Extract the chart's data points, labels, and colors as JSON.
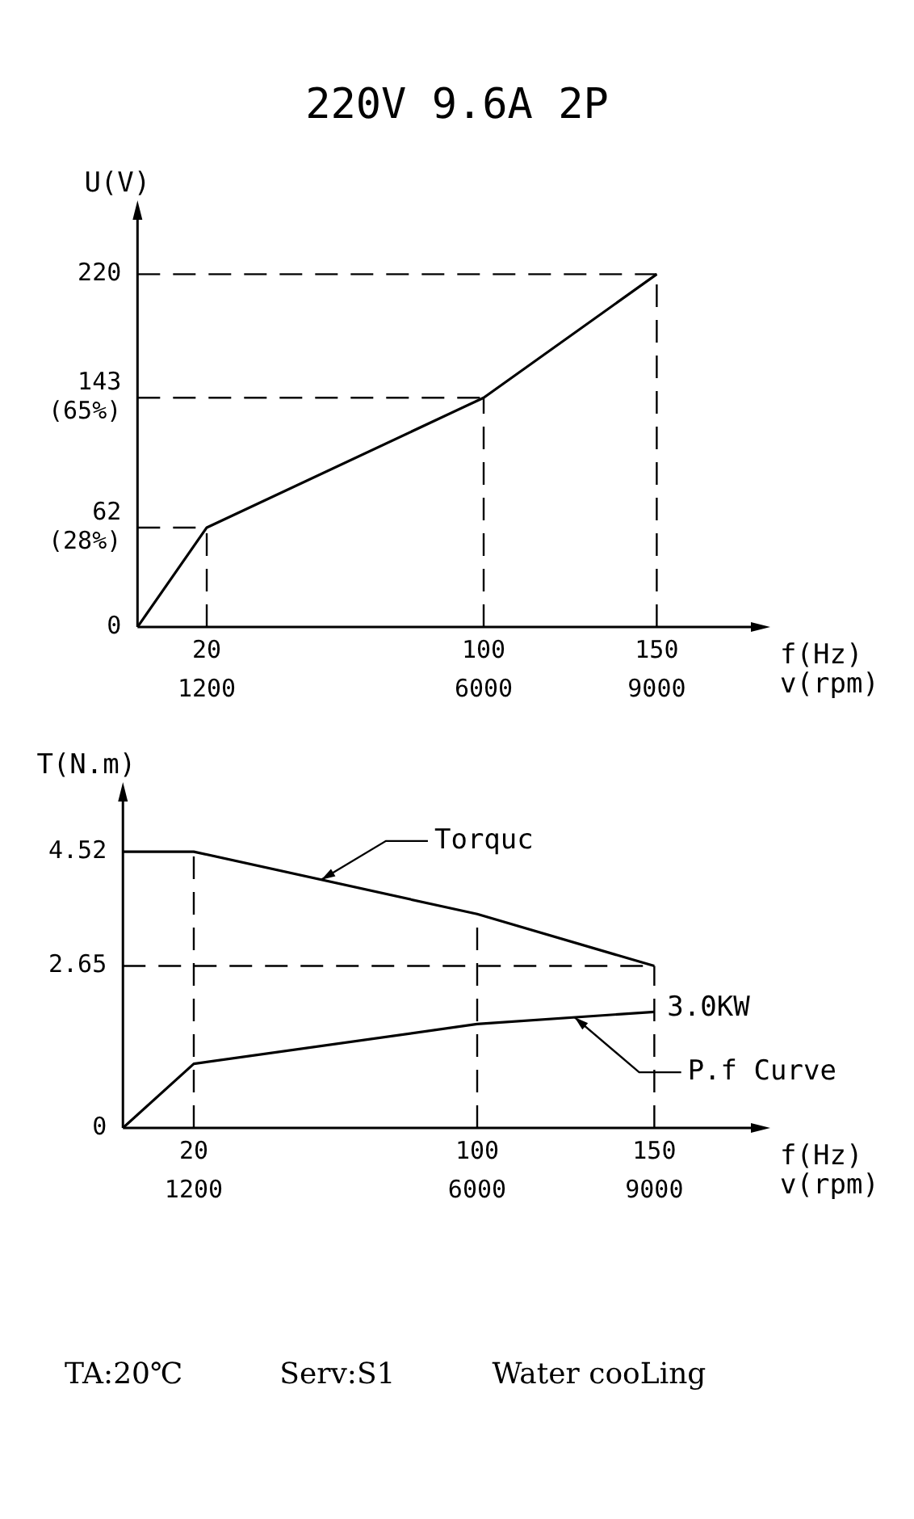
{
  "chart_data": [
    {
      "type": "line",
      "title": "220V 9.6A 2P",
      "xlabel": "f(Hz)",
      "x2label": "v(rpm)",
      "ylabel": "U(V)",
      "x2lim": [
        0,
        10800
      ],
      "x2ticks": [
        1200,
        6000,
        9000
      ],
      "series": [
        {
          "color": "#000000",
          "x": [
            0,
            20,
            100,
            150
          ],
          "values": [
            0,
            62,
            143,
            220
          ]
        }
      ],
      "xlim": [
        0,
        180
      ],
      "ylim": [
        0,
        260
      ],
      "xticks": [
        20,
        100,
        150
      ],
      "yticks": [
        0,
        {
          "value": 62,
          "label": "62\n(28%)"
        },
        {
          "value": 143,
          "label": "143\n(65%)"
        },
        220
      ],
      "ref_lines": [
        {
          "axis": "x",
          "value": 20,
          "color": "#000000",
          "line_style": "dashed"
        },
        {
          "axis": "x",
          "value": 100,
          "color": "#000000",
          "line_style": "dashed"
        },
        {
          "axis": "x",
          "value": 150,
          "color": "#000000",
          "line_style": "dashed"
        },
        {
          "axis": "y",
          "value": 62,
          "color": "#000000",
          "line_style": "dashed"
        },
        {
          "axis": "y",
          "value": 143,
          "color": "#000000",
          "line_style": "dashed"
        },
        {
          "axis": "y",
          "value": 220,
          "color": "#000000",
          "line_style": "dashed"
        }
      ],
      "grid": false,
      "legend": false,
      "marker": "none",
      "line_style": "solid"
    },
    {
      "type": "line",
      "xlabel": "f(Hz)",
      "x2label": "v(rpm)",
      "ylabel": "T(N.m)",
      "x2lim": [
        0,
        10800
      ],
      "x2ticks": [
        1200,
        6000,
        9000
      ],
      "series": [
        {
          "name": "Torquc",
          "color": "#000000",
          "x": [
            0,
            20,
            100,
            150
          ],
          "values": [
            4.52,
            4.52,
            3.5,
            2.65
          ]
        },
        {
          "name": "P.f Curve",
          "color": "#000000",
          "x": [
            0,
            20,
            100,
            150
          ],
          "values": [
            0,
            1.05,
            1.7,
            1.9
          ]
        }
      ],
      "xlim": [
        0,
        180
      ],
      "ylim": [
        0,
        5.5
      ],
      "xticks": [
        20,
        100,
        150
      ],
      "yticks": [
        0,
        2.65,
        4.52
      ],
      "ref_lines": [
        {
          "axis": "x",
          "value": 20,
          "color": "#000000",
          "line_style": "dashed"
        },
        {
          "axis": "x",
          "value": 100,
          "color": "#000000",
          "line_style": "dashed"
        },
        {
          "axis": "x",
          "value": 150,
          "color": "#000000",
          "line_style": "dashed"
        },
        {
          "axis": "y",
          "value": 2.65,
          "color": "#000000",
          "line_style": "dashed"
        }
      ],
      "annotations": [
        {
          "text": "3.0KW",
          "x": 150,
          "y": 1.9
        },
        "TA:20℃",
        "Serv:S1",
        "Water cooLing"
      ],
      "grid": false,
      "legend": false,
      "marker": "none",
      "line_style": "solid"
    }
  ]
}
